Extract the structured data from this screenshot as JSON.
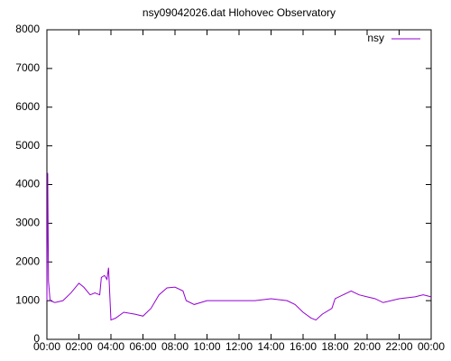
{
  "chart_data": {
    "type": "line",
    "title": "nsy09042026.dat Hlohovec Observatory",
    "x": [
      0,
      0.05,
      0.1,
      0.2,
      0.5,
      1,
      1.5,
      2,
      2.3,
      2.7,
      3,
      3.3,
      3.4,
      3.6,
      3.75,
      3.85,
      4.0,
      4.3,
      4.8,
      5.5,
      6,
      6.5,
      7,
      7.5,
      8,
      8.5,
      8.7,
      9.2,
      10,
      11,
      12,
      13,
      14,
      15,
      15.5,
      16,
      16.5,
      16.8,
      17.2,
      17.8,
      18,
      18.5,
      19,
      19.5,
      20,
      20.5,
      21,
      22,
      23,
      23.5,
      24
    ],
    "series": [
      {
        "name": "nsy",
        "color": "#9400d3",
        "values": [
          1000,
          4300,
          1500,
          1000,
          950,
          1000,
          1200,
          1450,
          1350,
          1150,
          1200,
          1150,
          1600,
          1650,
          1550,
          1850,
          500,
          550,
          700,
          650,
          600,
          800,
          1150,
          1330,
          1350,
          1250,
          1000,
          900,
          1000,
          1000,
          1000,
          1000,
          1050,
          1000,
          900,
          700,
          550,
          500,
          650,
          800,
          1050,
          1150,
          1250,
          1150,
          1100,
          1050,
          950,
          1050,
          1100,
          1150,
          1100
        ]
      }
    ],
    "xlim": [
      0,
      24
    ],
    "xticks": [
      {
        "value": 0,
        "label": "00:00"
      },
      {
        "value": 2,
        "label": "02:00"
      },
      {
        "value": 4,
        "label": "04:00"
      },
      {
        "value": 6,
        "label": "06:00"
      },
      {
        "value": 8,
        "label": "08:00"
      },
      {
        "value": 10,
        "label": "10:00"
      },
      {
        "value": 12,
        "label": "12:00"
      },
      {
        "value": 14,
        "label": "14:00"
      },
      {
        "value": 16,
        "label": "16:00"
      },
      {
        "value": 18,
        "label": "18:00"
      },
      {
        "value": 20,
        "label": "20:00"
      },
      {
        "value": 22,
        "label": "22:00"
      },
      {
        "value": 24,
        "label": "00:00"
      }
    ],
    "ylim": [
      0,
      8000
    ],
    "yticks": [
      0,
      1000,
      2000,
      3000,
      4000,
      5000,
      6000,
      7000,
      8000
    ],
    "grid": false,
    "legend": "top-right"
  }
}
